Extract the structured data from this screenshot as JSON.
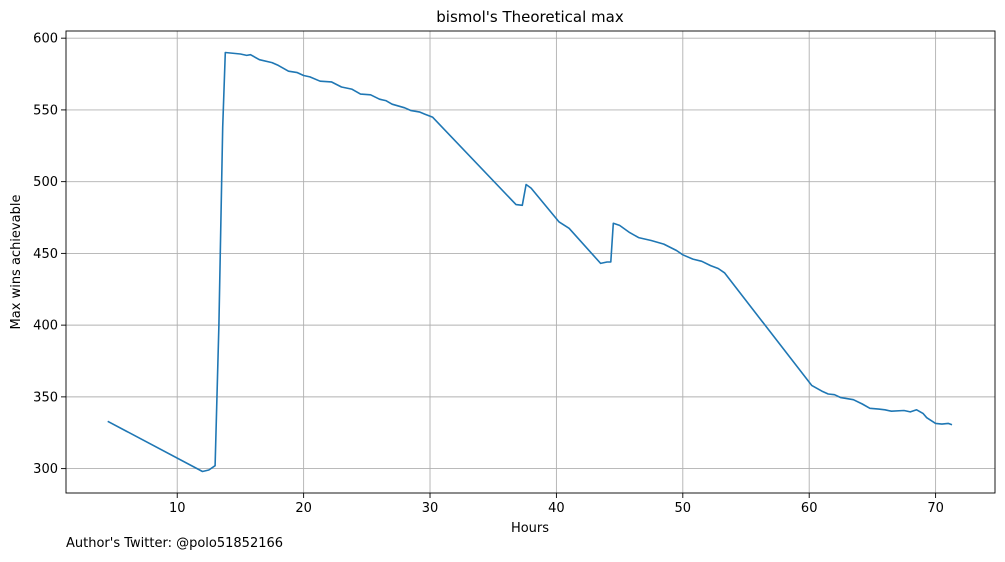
{
  "footnote": "Author's Twitter: @polo51852166",
  "colors": {
    "line": "#1f77b4",
    "grid": "#b0b0b0",
    "axis": "#000000"
  },
  "chart_data": {
    "type": "line",
    "title": "bismol's Theoretical max",
    "xlabel": "Hours",
    "ylabel": "Max wins achievable",
    "xlim": [
      1.2,
      74.7
    ],
    "ylim": [
      283,
      605
    ],
    "xticks": [
      10,
      20,
      30,
      40,
      50,
      60,
      70
    ],
    "yticks": [
      300,
      350,
      400,
      450,
      500,
      550,
      600
    ],
    "grid": true,
    "series": [
      {
        "points": [
          [
            4.5,
            333
          ],
          [
            12.0,
            298
          ],
          [
            12.5,
            299
          ],
          [
            13.0,
            302
          ],
          [
            13.3,
            400
          ],
          [
            13.6,
            538
          ],
          [
            13.8,
            590
          ],
          [
            15.0,
            589
          ],
          [
            15.5,
            588
          ],
          [
            15.8,
            588.5
          ],
          [
            16.5,
            585
          ],
          [
            17.5,
            583
          ],
          [
            18.0,
            581
          ],
          [
            18.8,
            577
          ],
          [
            19.5,
            576
          ],
          [
            20.0,
            574
          ],
          [
            20.5,
            573
          ],
          [
            21.3,
            570
          ],
          [
            22.2,
            569.5
          ],
          [
            23.0,
            566
          ],
          [
            23.8,
            564.5
          ],
          [
            24.5,
            561
          ],
          [
            25.3,
            560.5
          ],
          [
            26.0,
            557.5
          ],
          [
            26.5,
            556.5
          ],
          [
            27.0,
            554
          ],
          [
            28.0,
            551.5
          ],
          [
            28.5,
            549.5
          ],
          [
            29.2,
            548.5
          ],
          [
            29.6,
            547
          ],
          [
            30.2,
            545
          ],
          [
            36.8,
            484
          ],
          [
            37.3,
            483.5
          ],
          [
            37.6,
            498
          ],
          [
            38.0,
            495.5
          ],
          [
            40.2,
            472
          ],
          [
            41.0,
            467.5
          ],
          [
            43.5,
            443
          ],
          [
            44.0,
            444
          ],
          [
            44.3,
            444
          ],
          [
            44.5,
            471
          ],
          [
            45.0,
            469.5
          ],
          [
            45.8,
            464.5
          ],
          [
            46.5,
            461
          ],
          [
            47.5,
            459
          ],
          [
            48.5,
            456.5
          ],
          [
            49.5,
            452
          ],
          [
            50.0,
            449
          ],
          [
            50.8,
            446
          ],
          [
            51.5,
            444.5
          ],
          [
            52.2,
            441.5
          ],
          [
            52.8,
            439.5
          ],
          [
            53.3,
            436.5
          ],
          [
            60.2,
            358
          ],
          [
            61.0,
            354
          ],
          [
            61.5,
            352
          ],
          [
            62.0,
            351.5
          ],
          [
            62.5,
            349.5
          ],
          [
            63.5,
            348
          ],
          [
            64.2,
            345
          ],
          [
            64.8,
            342
          ],
          [
            65.5,
            341.5
          ],
          [
            66.0,
            341
          ],
          [
            66.5,
            340
          ],
          [
            67.5,
            340.5
          ],
          [
            68.0,
            339.5
          ],
          [
            68.5,
            341
          ],
          [
            69.0,
            338.5
          ],
          [
            69.3,
            335.5
          ],
          [
            70.0,
            331.5
          ],
          [
            70.5,
            331
          ],
          [
            71.0,
            331.5
          ],
          [
            71.3,
            330.5
          ]
        ]
      }
    ]
  }
}
